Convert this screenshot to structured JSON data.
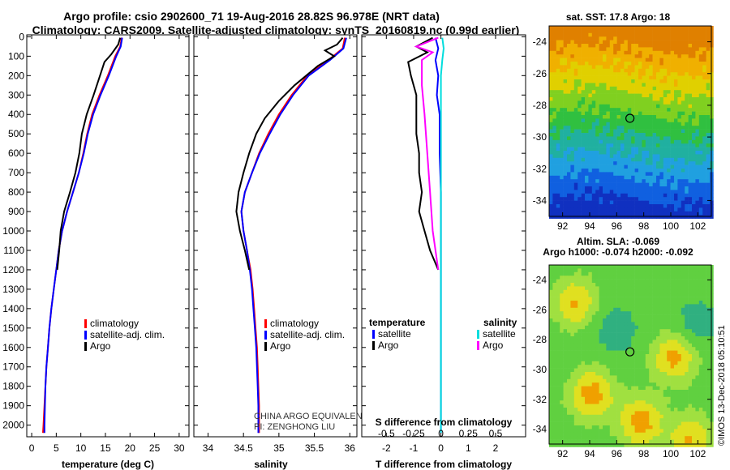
{
  "title_line1": "Argo profile: csio 2902600_71 19-Aug-2016 28.82S 96.978E (NRT data)",
  "title_line2": "Climatology: CARS2009. Satellite-adjusted climatology: synTS_20160819.nc (0.99d earlier)",
  "depth_ticks": [
    0,
    100,
    200,
    300,
    400,
    500,
    600,
    700,
    800,
    900,
    1000,
    1100,
    1200,
    1300,
    1400,
    1500,
    1600,
    1700,
    1800,
    1900,
    2000
  ],
  "colors": {
    "climatology": "#ff0000",
    "satellite": "#0000ff",
    "argo": "#000000",
    "sat_salinity": "#00dddd",
    "argo_salinity": "#ff00ff"
  },
  "temp_panel": {
    "xlabel": "temperature (deg C)",
    "xticks": [
      0,
      5,
      10,
      15,
      20,
      25,
      30
    ],
    "legend": [
      "climatology",
      "satellite-adj. clim.",
      "Argo"
    ],
    "chart_data": {
      "type": "line",
      "xlim": [
        -1,
        32
      ],
      "ylim": [
        2060,
        -10
      ],
      "series": [
        {
          "key": "climatology",
          "points": [
            [
              18.3,
              5
            ],
            [
              18.0,
              50
            ],
            [
              17.0,
              100
            ],
            [
              15.5,
              200
            ],
            [
              13.8,
              300
            ],
            [
              12.3,
              400
            ],
            [
              11.3,
              500
            ],
            [
              10.5,
              600
            ],
            [
              9.6,
              700
            ],
            [
              8.4,
              800
            ],
            [
              7.2,
              900
            ],
            [
              6.2,
              1000
            ],
            [
              5.5,
              1100
            ],
            [
              5.0,
              1200
            ],
            [
              4.5,
              1300
            ],
            [
              4.0,
              1400
            ],
            [
              3.6,
              1500
            ],
            [
              3.3,
              1600
            ],
            [
              3.0,
              1700
            ],
            [
              2.8,
              1800
            ],
            [
              2.6,
              1900
            ],
            [
              2.4,
              2000
            ],
            [
              2.3,
              2040
            ]
          ]
        },
        {
          "key": "satellite",
          "points": [
            [
              18.4,
              5
            ],
            [
              18.1,
              50
            ],
            [
              17.2,
              100
            ],
            [
              15.7,
              200
            ],
            [
              14.0,
              300
            ],
            [
              12.5,
              400
            ],
            [
              11.4,
              500
            ],
            [
              10.6,
              600
            ],
            [
              9.6,
              700
            ],
            [
              8.4,
              800
            ],
            [
              7.2,
              900
            ],
            [
              6.2,
              1000
            ],
            [
              5.5,
              1100
            ],
            [
              5.0,
              1200
            ],
            [
              4.5,
              1300
            ],
            [
              4.0,
              1400
            ],
            [
              3.6,
              1500
            ],
            [
              3.3,
              1600
            ],
            [
              3.0,
              1700
            ],
            [
              2.8,
              1800
            ],
            [
              2.7,
              1900
            ],
            [
              2.6,
              2000
            ],
            [
              2.6,
              2040
            ]
          ]
        },
        {
          "key": "argo",
          "points": [
            [
              18.0,
              5
            ],
            [
              17.6,
              40
            ],
            [
              16.2,
              90
            ],
            [
              14.8,
              130
            ],
            [
              13.9,
              200
            ],
            [
              12.6,
              300
            ],
            [
              11.2,
              400
            ],
            [
              10.2,
              500
            ],
            [
              9.7,
              600
            ],
            [
              8.9,
              700
            ],
            [
              7.8,
              800
            ],
            [
              6.6,
              900
            ],
            [
              5.9,
              1000
            ],
            [
              5.6,
              1100
            ],
            [
              5.2,
              1200
            ]
          ]
        }
      ]
    }
  },
  "sal_panel": {
    "xlabel": "salinity",
    "xticks": [
      34,
      34.5,
      35,
      35.5,
      36
    ],
    "legend": [
      "climatology",
      "satellite-adj. clim.",
      "Argo"
    ],
    "credit1": "CHINA ARGO EQUIVALENT",
    "credit2": "PI: ZENGHONG LIU",
    "chart_data": {
      "type": "line",
      "xlim": [
        33.8,
        36.1
      ],
      "ylim": [
        2060,
        -10
      ],
      "series": [
        {
          "key": "climatology",
          "points": [
            [
              35.93,
              5
            ],
            [
              35.9,
              60
            ],
            [
              35.7,
              120
            ],
            [
              35.4,
              200
            ],
            [
              35.18,
              300
            ],
            [
              35.0,
              400
            ],
            [
              34.85,
              500
            ],
            [
              34.72,
              600
            ],
            [
              34.62,
              700
            ],
            [
              34.52,
              800
            ],
            [
              34.47,
              900
            ],
            [
              34.5,
              1000
            ],
            [
              34.55,
              1100
            ],
            [
              34.6,
              1200
            ],
            [
              34.63,
              1300
            ],
            [
              34.65,
              1400
            ],
            [
              34.67,
              1500
            ],
            [
              34.69,
              1600
            ],
            [
              34.7,
              1700
            ],
            [
              34.71,
              1800
            ],
            [
              34.72,
              1900
            ],
            [
              34.72,
              2000
            ],
            [
              34.72,
              2040
            ]
          ]
        },
        {
          "key": "satellite",
          "points": [
            [
              35.95,
              5
            ],
            [
              35.91,
              60
            ],
            [
              35.72,
              120
            ],
            [
              35.42,
              200
            ],
            [
              35.2,
              300
            ],
            [
              35.02,
              400
            ],
            [
              34.87,
              500
            ],
            [
              34.73,
              600
            ],
            [
              34.62,
              700
            ],
            [
              34.52,
              800
            ],
            [
              34.47,
              900
            ],
            [
              34.5,
              1000
            ],
            [
              34.55,
              1100
            ],
            [
              34.59,
              1200
            ],
            [
              34.62,
              1300
            ],
            [
              34.64,
              1400
            ],
            [
              34.66,
              1500
            ],
            [
              34.68,
              1600
            ],
            [
              34.69,
              1700
            ],
            [
              34.7,
              1800
            ],
            [
              34.71,
              1900
            ],
            [
              34.71,
              2000
            ],
            [
              34.71,
              2040
            ]
          ]
        },
        {
          "key": "argo",
          "points": [
            [
              35.9,
              5
            ],
            [
              35.82,
              40
            ],
            [
              35.65,
              70
            ],
            [
              35.78,
              100
            ],
            [
              35.55,
              150
            ],
            [
              35.22,
              250
            ],
            [
              35.0,
              330
            ],
            [
              34.8,
              420
            ],
            [
              34.68,
              500
            ],
            [
              34.58,
              600
            ],
            [
              34.5,
              700
            ],
            [
              34.43,
              800
            ],
            [
              34.4,
              900
            ],
            [
              34.45,
              1000
            ],
            [
              34.52,
              1100
            ],
            [
              34.58,
              1200
            ]
          ]
        }
      ]
    }
  },
  "diff_panel": {
    "xlabel_bottom": "T difference from climatology",
    "xlabel_top": "S difference from climatology",
    "xticks_T": [
      -2,
      -1,
      0,
      1,
      2
    ],
    "xticks_S": [
      "-0.5",
      "-0.25",
      "0",
      "0.25",
      "0.5"
    ],
    "legend_temp_title": "temperature",
    "legend_sal_title": "salinity",
    "legend_left": [
      "satellite",
      "Argo"
    ],
    "legend_right": [
      "satellite",
      "Argo"
    ],
    "chart_data": {
      "type": "line",
      "xlim": [
        -2.9,
        3.1
      ],
      "ylim": [
        2060,
        -10
      ],
      "series": [
        {
          "key": "t_satellite",
          "points": [
            [
              -0.2,
              5
            ],
            [
              -0.1,
              60
            ],
            [
              -0.2,
              120
            ],
            [
              -0.1,
              200
            ],
            [
              -0.15,
              300
            ],
            [
              -0.05,
              400
            ],
            [
              -0.05,
              600
            ],
            [
              0.0,
              800
            ],
            [
              0.0,
              1000
            ],
            [
              0.0,
              1200
            ],
            [
              0.0,
              1500
            ],
            [
              0.0,
              2000
            ],
            [
              0.0,
              2040
            ]
          ]
        },
        {
          "key": "t_argo",
          "points": [
            [
              -0.3,
              5
            ],
            [
              -0.9,
              50
            ],
            [
              -0.5,
              80
            ],
            [
              -1.2,
              130
            ],
            [
              -1.1,
              200
            ],
            [
              -0.9,
              300
            ],
            [
              -0.9,
              400
            ],
            [
              -0.9,
              500
            ],
            [
              -0.8,
              600
            ],
            [
              -0.8,
              700
            ],
            [
              -0.7,
              800
            ],
            [
              -0.8,
              900
            ],
            [
              -0.6,
              1000
            ],
            [
              -0.4,
              1100
            ],
            [
              -0.1,
              1200
            ]
          ]
        },
        {
          "key": "s_satellite",
          "points": [
            [
              0.05,
              5
            ],
            [
              0.1,
              60
            ],
            [
              0.05,
              120
            ],
            [
              0.0,
              200
            ],
            [
              0.0,
              400
            ],
            [
              0.0,
              800
            ],
            [
              0.0,
              1200
            ],
            [
              0.0,
              1600
            ],
            [
              0.0,
              2000
            ],
            [
              0.0,
              2040
            ]
          ]
        },
        {
          "key": "s_argo",
          "points": [
            [
              -0.1,
              5
            ],
            [
              -0.9,
              50
            ],
            [
              -0.3,
              80
            ],
            [
              -0.7,
              120
            ],
            [
              -0.7,
              250
            ],
            [
              -0.6,
              400
            ],
            [
              -0.5,
              600
            ],
            [
              -0.4,
              800
            ],
            [
              -0.3,
              1000
            ],
            [
              -0.2,
              1100
            ],
            [
              -0.1,
              1200
            ]
          ]
        }
      ]
    }
  },
  "map_top": {
    "title": "sat. SST: 17.8 Argo: 18",
    "lon_ticks": [
      92,
      94,
      96,
      98,
      100,
      102
    ],
    "lat_ticks": [
      -24,
      -26,
      -28,
      -30,
      -32,
      -34
    ],
    "lon_range": [
      91,
      103
    ],
    "lat_range": [
      -35,
      -23
    ]
  },
  "map_bottom": {
    "title1": "Altim. SLA: -0.069",
    "title2": "Argo h1000: -0.074 h2000: -0.092",
    "lon_ticks": [
      92,
      94,
      96,
      98,
      100,
      102
    ],
    "lat_ticks": [
      -24,
      -26,
      -28,
      -30,
      -32,
      -34
    ],
    "lon_range": [
      91,
      103
    ],
    "lat_range": [
      -35,
      -23
    ]
  },
  "argo_position": {
    "lon": 96.978,
    "lat": -28.82
  },
  "watermark": "©IMOS 13-Dec-2018 05:10:51"
}
